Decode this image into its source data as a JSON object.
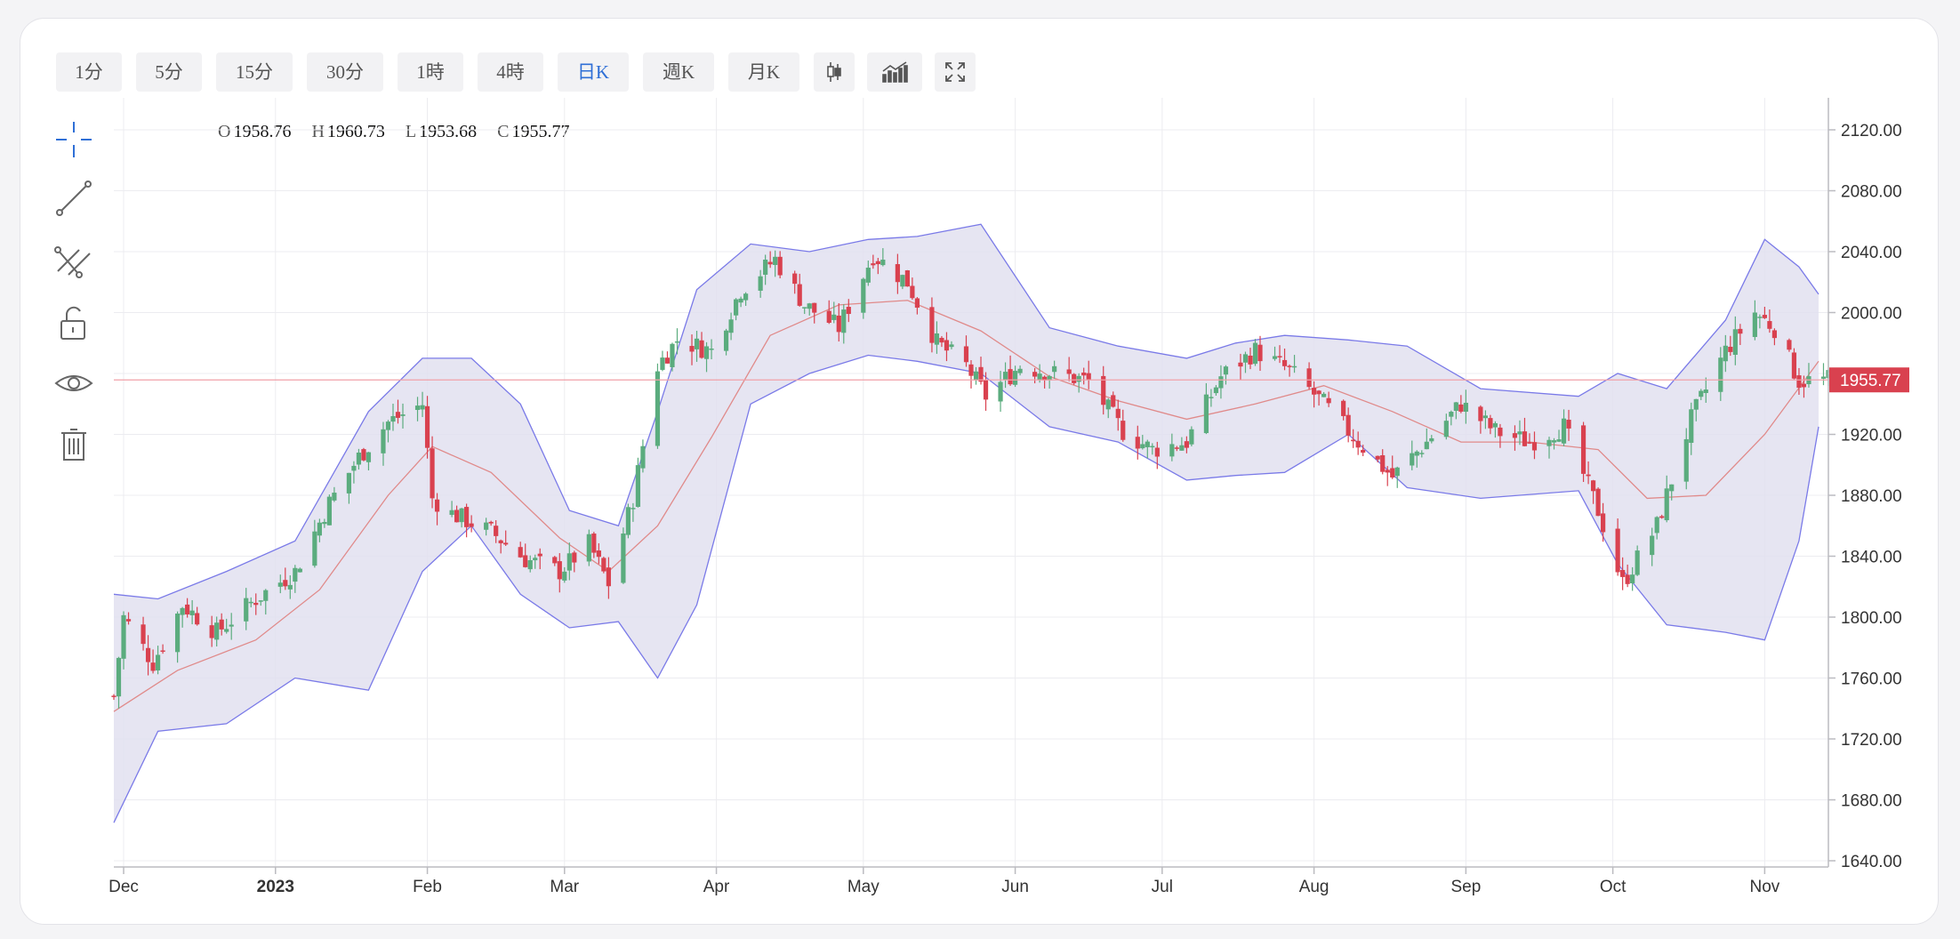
{
  "toolbar": {
    "timeframes": [
      {
        "label": "1分",
        "active": false
      },
      {
        "label": "5分",
        "active": false
      },
      {
        "label": "15分",
        "active": false
      },
      {
        "label": "30分",
        "active": false
      },
      {
        "label": "1時",
        "active": false
      },
      {
        "label": "4時",
        "active": false
      },
      {
        "label": "日K",
        "active": true
      },
      {
        "label": "週K",
        "active": false
      },
      {
        "label": "月K",
        "active": false
      }
    ],
    "icons": [
      "candlestick-type-icon",
      "indicator-icon",
      "fullscreen-icon"
    ]
  },
  "side_tools": [
    "crosshair-icon",
    "line-tool-icon",
    "parallel-lines-icon",
    "lock-icon",
    "eye-icon",
    "trash-icon"
  ],
  "ohlc": {
    "o": "1958.76",
    "h": "1960.73",
    "l": "1953.68",
    "c": "1955.77"
  },
  "colors": {
    "up": "#5bac7e",
    "down": "#d9414f",
    "band_fill": "#e2e1f0",
    "band_line": "#7a7ae8",
    "mid_line": "#e08a8a",
    "price_tag": "#d9414f",
    "active_tab": "#2f6fd6"
  },
  "chart_data": {
    "type": "candlestick",
    "indicator": "bollinger_bands",
    "last_price": 1955.77,
    "last_price_label": "1955.77",
    "ylim": [
      1640,
      2120
    ],
    "y_ticks": [
      1640,
      1680,
      1720,
      1760,
      1800,
      1840,
      1880,
      1920,
      1960,
      2000,
      2040,
      2080,
      2120
    ],
    "y_tick_labels": [
      "1640.00",
      "1680.00",
      "1720.00",
      "1760.00",
      "1800.00",
      "1840.00",
      "1880.00",
      "1920.00",
      "1960.00",
      "2000.00",
      "2040.00",
      "2080.00",
      "2120.00"
    ],
    "x_start": "2022-11-29",
    "x_end": "2023-11-14",
    "x_ticks": [
      {
        "date": "2022-12-01",
        "label": "Dec",
        "bold": false
      },
      {
        "date": "2023-01-01",
        "label": "2023",
        "bold": true
      },
      {
        "date": "2023-02-01",
        "label": "Feb",
        "bold": false
      },
      {
        "date": "2023-03-01",
        "label": "Mar",
        "bold": false
      },
      {
        "date": "2023-04-01",
        "label": "Apr",
        "bold": false
      },
      {
        "date": "2023-05-01",
        "label": "May",
        "bold": false
      },
      {
        "date": "2023-06-01",
        "label": "Jun",
        "bold": false
      },
      {
        "date": "2023-07-01",
        "label": "Jul",
        "bold": false
      },
      {
        "date": "2023-08-01",
        "label": "Aug",
        "bold": false
      },
      {
        "date": "2023-09-01",
        "label": "Sep",
        "bold": false
      },
      {
        "date": "2023-10-01",
        "label": "Oct",
        "bold": false
      },
      {
        "date": "2023-11-01",
        "label": "Nov",
        "bold": false
      }
    ],
    "close_path": [
      [
        "2022-11-29",
        1748
      ],
      [
        "2022-12-01",
        1800
      ],
      [
        "2022-12-07",
        1770
      ],
      [
        "2022-12-13",
        1808
      ],
      [
        "2022-12-20",
        1790
      ],
      [
        "2022-12-28",
        1812
      ],
      [
        "2023-01-05",
        1830
      ],
      [
        "2023-01-12",
        1875
      ],
      [
        "2023-01-18",
        1905
      ],
      [
        "2023-01-24",
        1928
      ],
      [
        "2023-01-31",
        1940
      ],
      [
        "2023-02-02",
        1878
      ],
      [
        "2023-02-06",
        1868
      ],
      [
        "2023-02-14",
        1856
      ],
      [
        "2023-02-21",
        1838
      ],
      [
        "2023-02-28",
        1830
      ],
      [
        "2023-03-06",
        1848
      ],
      [
        "2023-03-10",
        1822
      ],
      [
        "2023-03-15",
        1878
      ],
      [
        "2023-03-20",
        1965
      ],
      [
        "2023-03-24",
        1982
      ],
      [
        "2023-03-31",
        1975
      ],
      [
        "2023-04-06",
        2015
      ],
      [
        "2023-04-13",
        2035
      ],
      [
        "2023-04-19",
        2005
      ],
      [
        "2023-04-26",
        1990
      ],
      [
        "2023-05-03",
        2038
      ],
      [
        "2023-05-10",
        2020
      ],
      [
        "2023-05-16",
        1980
      ],
      [
        "2023-05-22",
        1965
      ],
      [
        "2023-05-26",
        1945
      ],
      [
        "2023-06-02",
        1965
      ],
      [
        "2023-06-09",
        1960
      ],
      [
        "2023-06-16",
        1955
      ],
      [
        "2023-06-23",
        1922
      ],
      [
        "2023-06-29",
        1910
      ],
      [
        "2023-07-06",
        1915
      ],
      [
        "2023-07-13",
        1958
      ],
      [
        "2023-07-20",
        1975
      ],
      [
        "2023-07-27",
        1962
      ],
      [
        "2023-08-03",
        1940
      ],
      [
        "2023-08-10",
        1915
      ],
      [
        "2023-08-17",
        1892
      ],
      [
        "2023-08-24",
        1915
      ],
      [
        "2023-08-31",
        1940
      ],
      [
        "2023-09-07",
        1922
      ],
      [
        "2023-09-14",
        1915
      ],
      [
        "2023-09-21",
        1925
      ],
      [
        "2023-09-28",
        1870
      ],
      [
        "2023-10-03",
        1822
      ],
      [
        "2023-10-10",
        1860
      ],
      [
        "2023-10-17",
        1930
      ],
      [
        "2023-10-24",
        1975
      ],
      [
        "2023-10-30",
        2000
      ],
      [
        "2023-11-03",
        1990
      ],
      [
        "2023-11-08",
        1955
      ],
      [
        "2023-11-14",
        1956
      ]
    ],
    "upper_band": [
      [
        "2022-11-29",
        1815
      ],
      [
        "2022-12-08",
        1812
      ],
      [
        "2022-12-22",
        1830
      ],
      [
        "2023-01-05",
        1850
      ],
      [
        "2023-01-20",
        1935
      ],
      [
        "2023-01-31",
        1970
      ],
      [
        "2023-02-10",
        1970
      ],
      [
        "2023-02-20",
        1940
      ],
      [
        "2023-03-02",
        1870
      ],
      [
        "2023-03-12",
        1860
      ],
      [
        "2023-03-20",
        1935
      ],
      [
        "2023-03-28",
        2015
      ],
      [
        "2023-04-08",
        2045
      ],
      [
        "2023-04-20",
        2040
      ],
      [
        "2023-05-02",
        2048
      ],
      [
        "2023-05-12",
        2050
      ],
      [
        "2023-05-25",
        2058
      ],
      [
        "2023-06-08",
        1990
      ],
      [
        "2023-06-22",
        1978
      ],
      [
        "2023-07-06",
        1970
      ],
      [
        "2023-07-16",
        1980
      ],
      [
        "2023-07-26",
        1985
      ],
      [
        "2023-08-08",
        1982
      ],
      [
        "2023-08-20",
        1978
      ],
      [
        "2023-09-04",
        1950
      ],
      [
        "2023-09-24",
        1945
      ],
      [
        "2023-10-02",
        1960
      ],
      [
        "2023-10-12",
        1950
      ],
      [
        "2023-10-24",
        1995
      ],
      [
        "2023-11-01",
        2048
      ],
      [
        "2023-11-08",
        2030
      ],
      [
        "2023-11-12",
        2012
      ]
    ],
    "lower_band": [
      [
        "2022-11-29",
        1665
      ],
      [
        "2022-12-08",
        1725
      ],
      [
        "2022-12-22",
        1730
      ],
      [
        "2023-01-05",
        1760
      ],
      [
        "2023-01-20",
        1752
      ],
      [
        "2023-01-31",
        1830
      ],
      [
        "2023-02-10",
        1860
      ],
      [
        "2023-02-20",
        1815
      ],
      [
        "2023-03-02",
        1793
      ],
      [
        "2023-03-12",
        1797
      ],
      [
        "2023-03-20",
        1760
      ],
      [
        "2023-03-28",
        1808
      ],
      [
        "2023-04-08",
        1940
      ],
      [
        "2023-04-20",
        1960
      ],
      [
        "2023-05-02",
        1972
      ],
      [
        "2023-05-12",
        1968
      ],
      [
        "2023-05-25",
        1960
      ],
      [
        "2023-06-08",
        1925
      ],
      [
        "2023-06-22",
        1915
      ],
      [
        "2023-07-06",
        1890
      ],
      [
        "2023-07-16",
        1893
      ],
      [
        "2023-07-26",
        1895
      ],
      [
        "2023-08-08",
        1920
      ],
      [
        "2023-08-20",
        1885
      ],
      [
        "2023-09-04",
        1878
      ],
      [
        "2023-09-24",
        1883
      ],
      [
        "2023-10-02",
        1835
      ],
      [
        "2023-10-12",
        1795
      ],
      [
        "2023-10-24",
        1790
      ],
      [
        "2023-11-01",
        1785
      ],
      [
        "2023-11-08",
        1850
      ],
      [
        "2023-11-12",
        1925
      ]
    ],
    "middle_band": [
      [
        "2022-11-29",
        1738
      ],
      [
        "2022-12-12",
        1765
      ],
      [
        "2022-12-28",
        1785
      ],
      [
        "2023-01-10",
        1818
      ],
      [
        "2023-01-24",
        1880
      ],
      [
        "2023-02-02",
        1912
      ],
      [
        "2023-02-14",
        1895
      ],
      [
        "2023-02-28",
        1852
      ],
      [
        "2023-03-10",
        1830
      ],
      [
        "2023-03-20",
        1860
      ],
      [
        "2023-03-31",
        1918
      ],
      [
        "2023-04-12",
        1985
      ],
      [
        "2023-04-26",
        2005
      ],
      [
        "2023-05-10",
        2008
      ],
      [
        "2023-05-25",
        1988
      ],
      [
        "2023-06-08",
        1958
      ],
      [
        "2023-06-22",
        1942
      ],
      [
        "2023-07-06",
        1930
      ],
      [
        "2023-07-20",
        1940
      ],
      [
        "2023-08-03",
        1952
      ],
      [
        "2023-08-17",
        1935
      ],
      [
        "2023-08-31",
        1915
      ],
      [
        "2023-09-14",
        1915
      ],
      [
        "2023-09-28",
        1910
      ],
      [
        "2023-10-08",
        1878
      ],
      [
        "2023-10-20",
        1880
      ],
      [
        "2023-11-01",
        1920
      ],
      [
        "2023-11-12",
        1968
      ]
    ]
  }
}
